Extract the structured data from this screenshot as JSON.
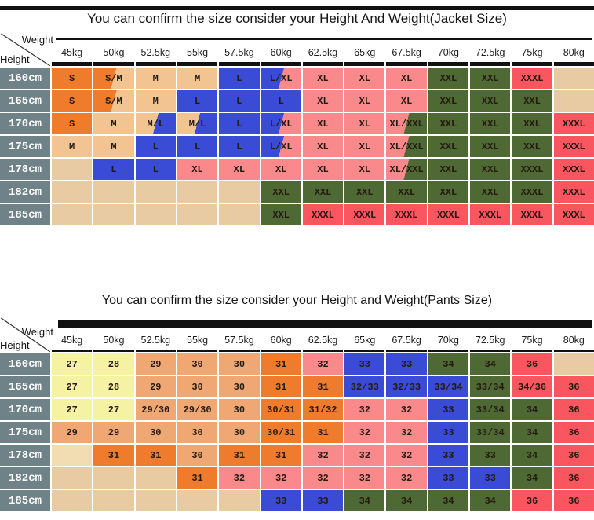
{
  "palette": {
    "orange": "#EF7B2D",
    "tan": "#F2C491",
    "blue": "#3A4BD5",
    "pink": "#F9898B",
    "green": "#4E6933",
    "red": "#F9565F",
    "empty": "#E9CBA3",
    "yellow": "#F6F2A3",
    "peach": "#EFA873",
    "cream": "#F2DCB2",
    "header_bg": "#6E8287",
    "bar": "#111111"
  },
  "chart_data": [
    {
      "type": "table",
      "title": "You can confirm the size consider  your Height And Weight(Jacket Size)",
      "corner": {
        "top_label": "Weight",
        "side_label": "Height"
      },
      "columns": [
        "45kg",
        "50kg",
        "52.5kg",
        "55kg",
        "57.5kg",
        "60kg",
        "62.5kg",
        "65kg",
        "67.5kg",
        "70kg",
        "72.5kg",
        "75kg",
        "80kg"
      ],
      "rows": [
        {
          "height": "160cm",
          "values": [
            "S",
            "S/M",
            "M",
            "M",
            "L",
            "L/XL",
            "XL",
            "XL",
            "XL",
            "XXL",
            "XXL",
            "XXXL",
            ""
          ],
          "colors": [
            "orange",
            "orange/tan",
            "tan",
            "tan",
            "blue",
            "blue/pink",
            "pink",
            "pink",
            "pink",
            "green",
            "green",
            "red",
            "empty"
          ]
        },
        {
          "height": "165cm",
          "values": [
            "S",
            "S/M",
            "M",
            "L",
            "L",
            "L",
            "XL",
            "XL",
            "XL",
            "XXL",
            "XXL",
            "XXL",
            ""
          ],
          "colors": [
            "orange",
            "orange/tan",
            "tan",
            "blue",
            "blue",
            "blue",
            "pink",
            "pink",
            "pink",
            "green",
            "green",
            "green",
            "empty"
          ]
        },
        {
          "height": "170cm",
          "values": [
            "S",
            "M",
            "M/L",
            "M/L",
            "L",
            "L/XL",
            "XL",
            "XL",
            "XL/XXL",
            "XXL",
            "XXL",
            "XXL",
            "XXXL"
          ],
          "colors": [
            "orange",
            "tan",
            "tan/blue",
            "tan/blue",
            "blue",
            "blue/pink",
            "pink",
            "pink",
            "pink/green",
            "green",
            "green",
            "green",
            "red"
          ]
        },
        {
          "height": "175cm",
          "values": [
            "M",
            "M",
            "L",
            "L",
            "L",
            "L/XL",
            "XL",
            "XL",
            "XL/XXL",
            "XXL",
            "XXL",
            "XXL",
            "XXXL"
          ],
          "colors": [
            "tan",
            "tan",
            "blue",
            "blue",
            "blue",
            "blue/pink",
            "pink",
            "pink",
            "pink/green",
            "green",
            "green",
            "green",
            "red"
          ]
        },
        {
          "height": "178cm",
          "values": [
            "",
            "L",
            "L",
            "XL",
            "XL",
            "XL",
            "XL",
            "XL",
            "XL/XXL",
            "XXL",
            "XXL",
            "XXXL",
            "XXXL"
          ],
          "colors": [
            "empty",
            "blue",
            "blue",
            "pink",
            "pink",
            "pink",
            "pink",
            "pink",
            "pink/green",
            "green",
            "green",
            "green",
            "red"
          ]
        },
        {
          "height": "182cm",
          "values": [
            "",
            "",
            "",
            "",
            "",
            "XXL",
            "XXL",
            "XXL",
            "XXL",
            "XXL",
            "XXL",
            "XXXL",
            "XXXL"
          ],
          "colors": [
            "empty",
            "empty",
            "empty",
            "empty",
            "empty",
            "green",
            "green",
            "green",
            "green",
            "green",
            "green",
            "green",
            "red"
          ]
        },
        {
          "height": "185cm",
          "values": [
            "",
            "",
            "",
            "",
            "",
            "XXL",
            "XXXL",
            "XXXL",
            "XXXL",
            "XXXL",
            "XXXL",
            "XXXL",
            "XXXL"
          ],
          "colors": [
            "empty",
            "empty",
            "empty",
            "empty",
            "empty",
            "green",
            "red",
            "red",
            "red",
            "red",
            "red",
            "red",
            "red"
          ]
        }
      ]
    },
    {
      "type": "table",
      "title": "You can confirm the size consider your Height and Weight(Pants Size)",
      "corner": {
        "top_label": "Weight",
        "side_label": "Height"
      },
      "columns": [
        "45kg",
        "50kg",
        "52.5kg",
        "55kg",
        "57.5kg",
        "60kg",
        "62.5kg",
        "65kg",
        "67.5kg",
        "70kg",
        "72.5kg",
        "75kg",
        "80kg"
      ],
      "rows": [
        {
          "height": "160cm",
          "values": [
            "27",
            "28",
            "29",
            "30",
            "30",
            "31",
            "32",
            "33",
            "33",
            "34",
            "34",
            "36",
            ""
          ],
          "colors": [
            "yellow",
            "yellow",
            "peach",
            "peach",
            "peach",
            "orange",
            "pink",
            "blue",
            "blue",
            "green",
            "green",
            "red",
            "empty"
          ]
        },
        {
          "height": "165cm",
          "values": [
            "27",
            "28",
            "29",
            "30",
            "30",
            "31",
            "31",
            "32/33",
            "32/33",
            "33/34",
            "33/34",
            "34/36",
            "36"
          ],
          "colors": [
            "yellow",
            "yellow",
            "peach",
            "peach",
            "peach",
            "orange",
            "orange",
            "blue",
            "blue",
            "blue",
            "green",
            "red",
            "red"
          ]
        },
        {
          "height": "170cm",
          "values": [
            "27",
            "27",
            "29/30",
            "29/30",
            "30",
            "30/31",
            "31/32",
            "32",
            "32",
            "33",
            "33/34",
            "34",
            "36"
          ],
          "colors": [
            "yellow",
            "yellow",
            "peach",
            "peach",
            "peach",
            "orange",
            "orange",
            "pink",
            "pink",
            "blue",
            "green",
            "green",
            "red"
          ]
        },
        {
          "height": "175cm",
          "values": [
            "29",
            "29",
            "30",
            "30",
            "30",
            "30/31",
            "31",
            "32",
            "32",
            "33",
            "33/34",
            "34",
            "36"
          ],
          "colors": [
            "peach",
            "peach",
            "peach",
            "peach",
            "peach",
            "orange",
            "orange",
            "pink",
            "pink",
            "blue",
            "green",
            "green",
            "red"
          ]
        },
        {
          "height": "178cm",
          "values": [
            "",
            "31",
            "31",
            "30",
            "31",
            "31",
            "32",
            "32",
            "32",
            "33",
            "33",
            "34",
            "36"
          ],
          "colors": [
            "cream",
            "orange",
            "orange",
            "peach",
            "orange",
            "orange",
            "pink",
            "pink",
            "pink",
            "blue",
            "green",
            "green",
            "red"
          ]
        },
        {
          "height": "182cm",
          "values": [
            "",
            "",
            "",
            "31",
            "32",
            "32",
            "32",
            "32",
            "32",
            "33",
            "33",
            "34",
            "36"
          ],
          "colors": [
            "empty",
            "empty",
            "empty",
            "orange",
            "pink",
            "pink",
            "pink",
            "pink",
            "pink",
            "blue",
            "blue",
            "green",
            "red"
          ]
        },
        {
          "height": "185cm",
          "values": [
            "",
            "",
            "",
            "",
            "",
            "33",
            "33",
            "34",
            "34",
            "34",
            "34",
            "36",
            "36"
          ],
          "colors": [
            "empty",
            "empty",
            "empty",
            "empty",
            "empty",
            "blue",
            "blue",
            "green",
            "green",
            "green",
            "green",
            "red",
            "red"
          ]
        }
      ]
    }
  ]
}
